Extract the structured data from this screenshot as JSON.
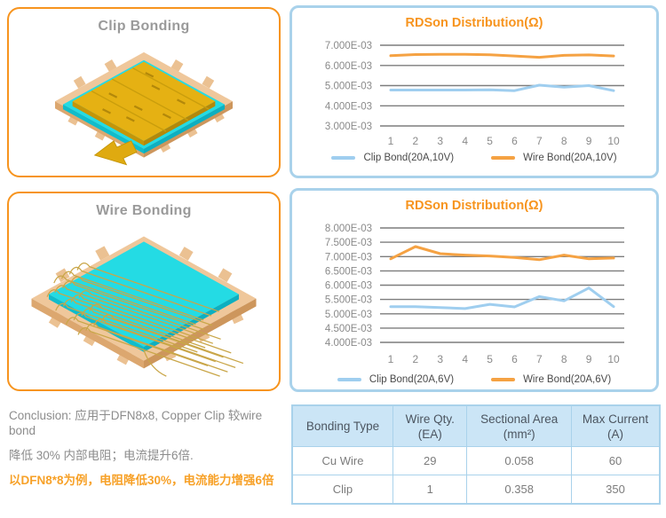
{
  "panels": {
    "clip": {
      "title": "Clip Bonding"
    },
    "wire": {
      "title": "Wire Bonding"
    }
  },
  "chart_data": [
    {
      "type": "line",
      "title": "RDSon Distribution(Ω)",
      "xlabel": "",
      "ylabel": "",
      "x": [
        1,
        2,
        3,
        4,
        5,
        6,
        7,
        8,
        9,
        10
      ],
      "ylim": [
        0.003,
        0.007
      ],
      "grid": true,
      "legend_position": "bottom",
      "ytick_labels": [
        "7.000E-03",
        "6.000E-03",
        "5.000E-03",
        "4.000E-03",
        "3.000E-03"
      ],
      "ytick_values": [
        0.007,
        0.006,
        0.005,
        0.004,
        0.003
      ],
      "series": [
        {
          "name": "Clip Bond(20A,10V)",
          "color": "#9FCEEF",
          "values": [
            0.00478,
            0.00478,
            0.00478,
            0.00478,
            0.00479,
            0.00475,
            0.00502,
            0.00492,
            0.005,
            0.00475
          ]
        },
        {
          "name": "Wire Bond(20A,10V)",
          "color": "#F5A243",
          "values": [
            0.00648,
            0.00654,
            0.00655,
            0.00655,
            0.00653,
            0.00647,
            0.0064,
            0.0065,
            0.00652,
            0.00647
          ]
        }
      ]
    },
    {
      "type": "line",
      "title": "RDSon Distribution(Ω)",
      "xlabel": "",
      "ylabel": "",
      "x": [
        1,
        2,
        3,
        4,
        5,
        6,
        7,
        8,
        9,
        10
      ],
      "ylim": [
        0.004,
        0.008
      ],
      "grid": true,
      "legend_position": "bottom",
      "ytick_labels": [
        "8.000E-03",
        "7.500E-03",
        "7.000E-03",
        "6.500E-03",
        "6.000E-03",
        "5.500E-03",
        "5.000E-03",
        "4.500E-03",
        "4.000E-03"
      ],
      "ytick_values": [
        0.008,
        0.0075,
        0.007,
        0.0065,
        0.006,
        0.0055,
        0.005,
        0.0045,
        0.004
      ],
      "series": [
        {
          "name": "Clip Bond(20A,6V)",
          "color": "#9FCEEF",
          "values": [
            0.00525,
            0.00525,
            0.00522,
            0.00518,
            0.00533,
            0.00524,
            0.0056,
            0.00545,
            0.0059,
            0.00525
          ]
        },
        {
          "name": "Wire Bond(20A,6V)",
          "color": "#F5A243",
          "values": [
            0.00692,
            0.00735,
            0.0071,
            0.00705,
            0.00702,
            0.00697,
            0.00689,
            0.00705,
            0.00692,
            0.00695
          ]
        }
      ]
    }
  ],
  "conclusion": {
    "line1": "Conclusion: 应用于DFN8x8, Copper Clip 较wire bond",
    "line2": "降低 30% 内部电阻；电流提升6倍.",
    "line3": "以DFN8*8为例，电阻降低30%，电流能力增强6倍"
  },
  "table": {
    "headers": [
      {
        "line1": "Bonding Type",
        "line2": ""
      },
      {
        "line1": "Wire Qty.",
        "line2": "(EA)"
      },
      {
        "line1": "Sectional Area",
        "line2": "(mm²)"
      },
      {
        "line1": "Max Current",
        "line2": "(A)"
      }
    ],
    "rows": [
      [
        "Cu Wire",
        "29",
        "0.058",
        "60"
      ],
      [
        "Clip",
        "1",
        "0.358",
        "350"
      ]
    ]
  },
  "colors": {
    "accent_orange": "#F7941E",
    "panel_blue_border": "#A9D2EB",
    "line_blue": "#9FCEEF",
    "line_orange": "#F5A243",
    "gridline_gray": "#7D7D7D",
    "table_header_bg": "#CBE5F6",
    "text_gray": "#8C8C8C",
    "conclusion_highlight": "#F7A128",
    "leadframe_tan": "#EFC79B",
    "die_cyan": "#24DBE4",
    "clip_gold": "#E5B113"
  }
}
